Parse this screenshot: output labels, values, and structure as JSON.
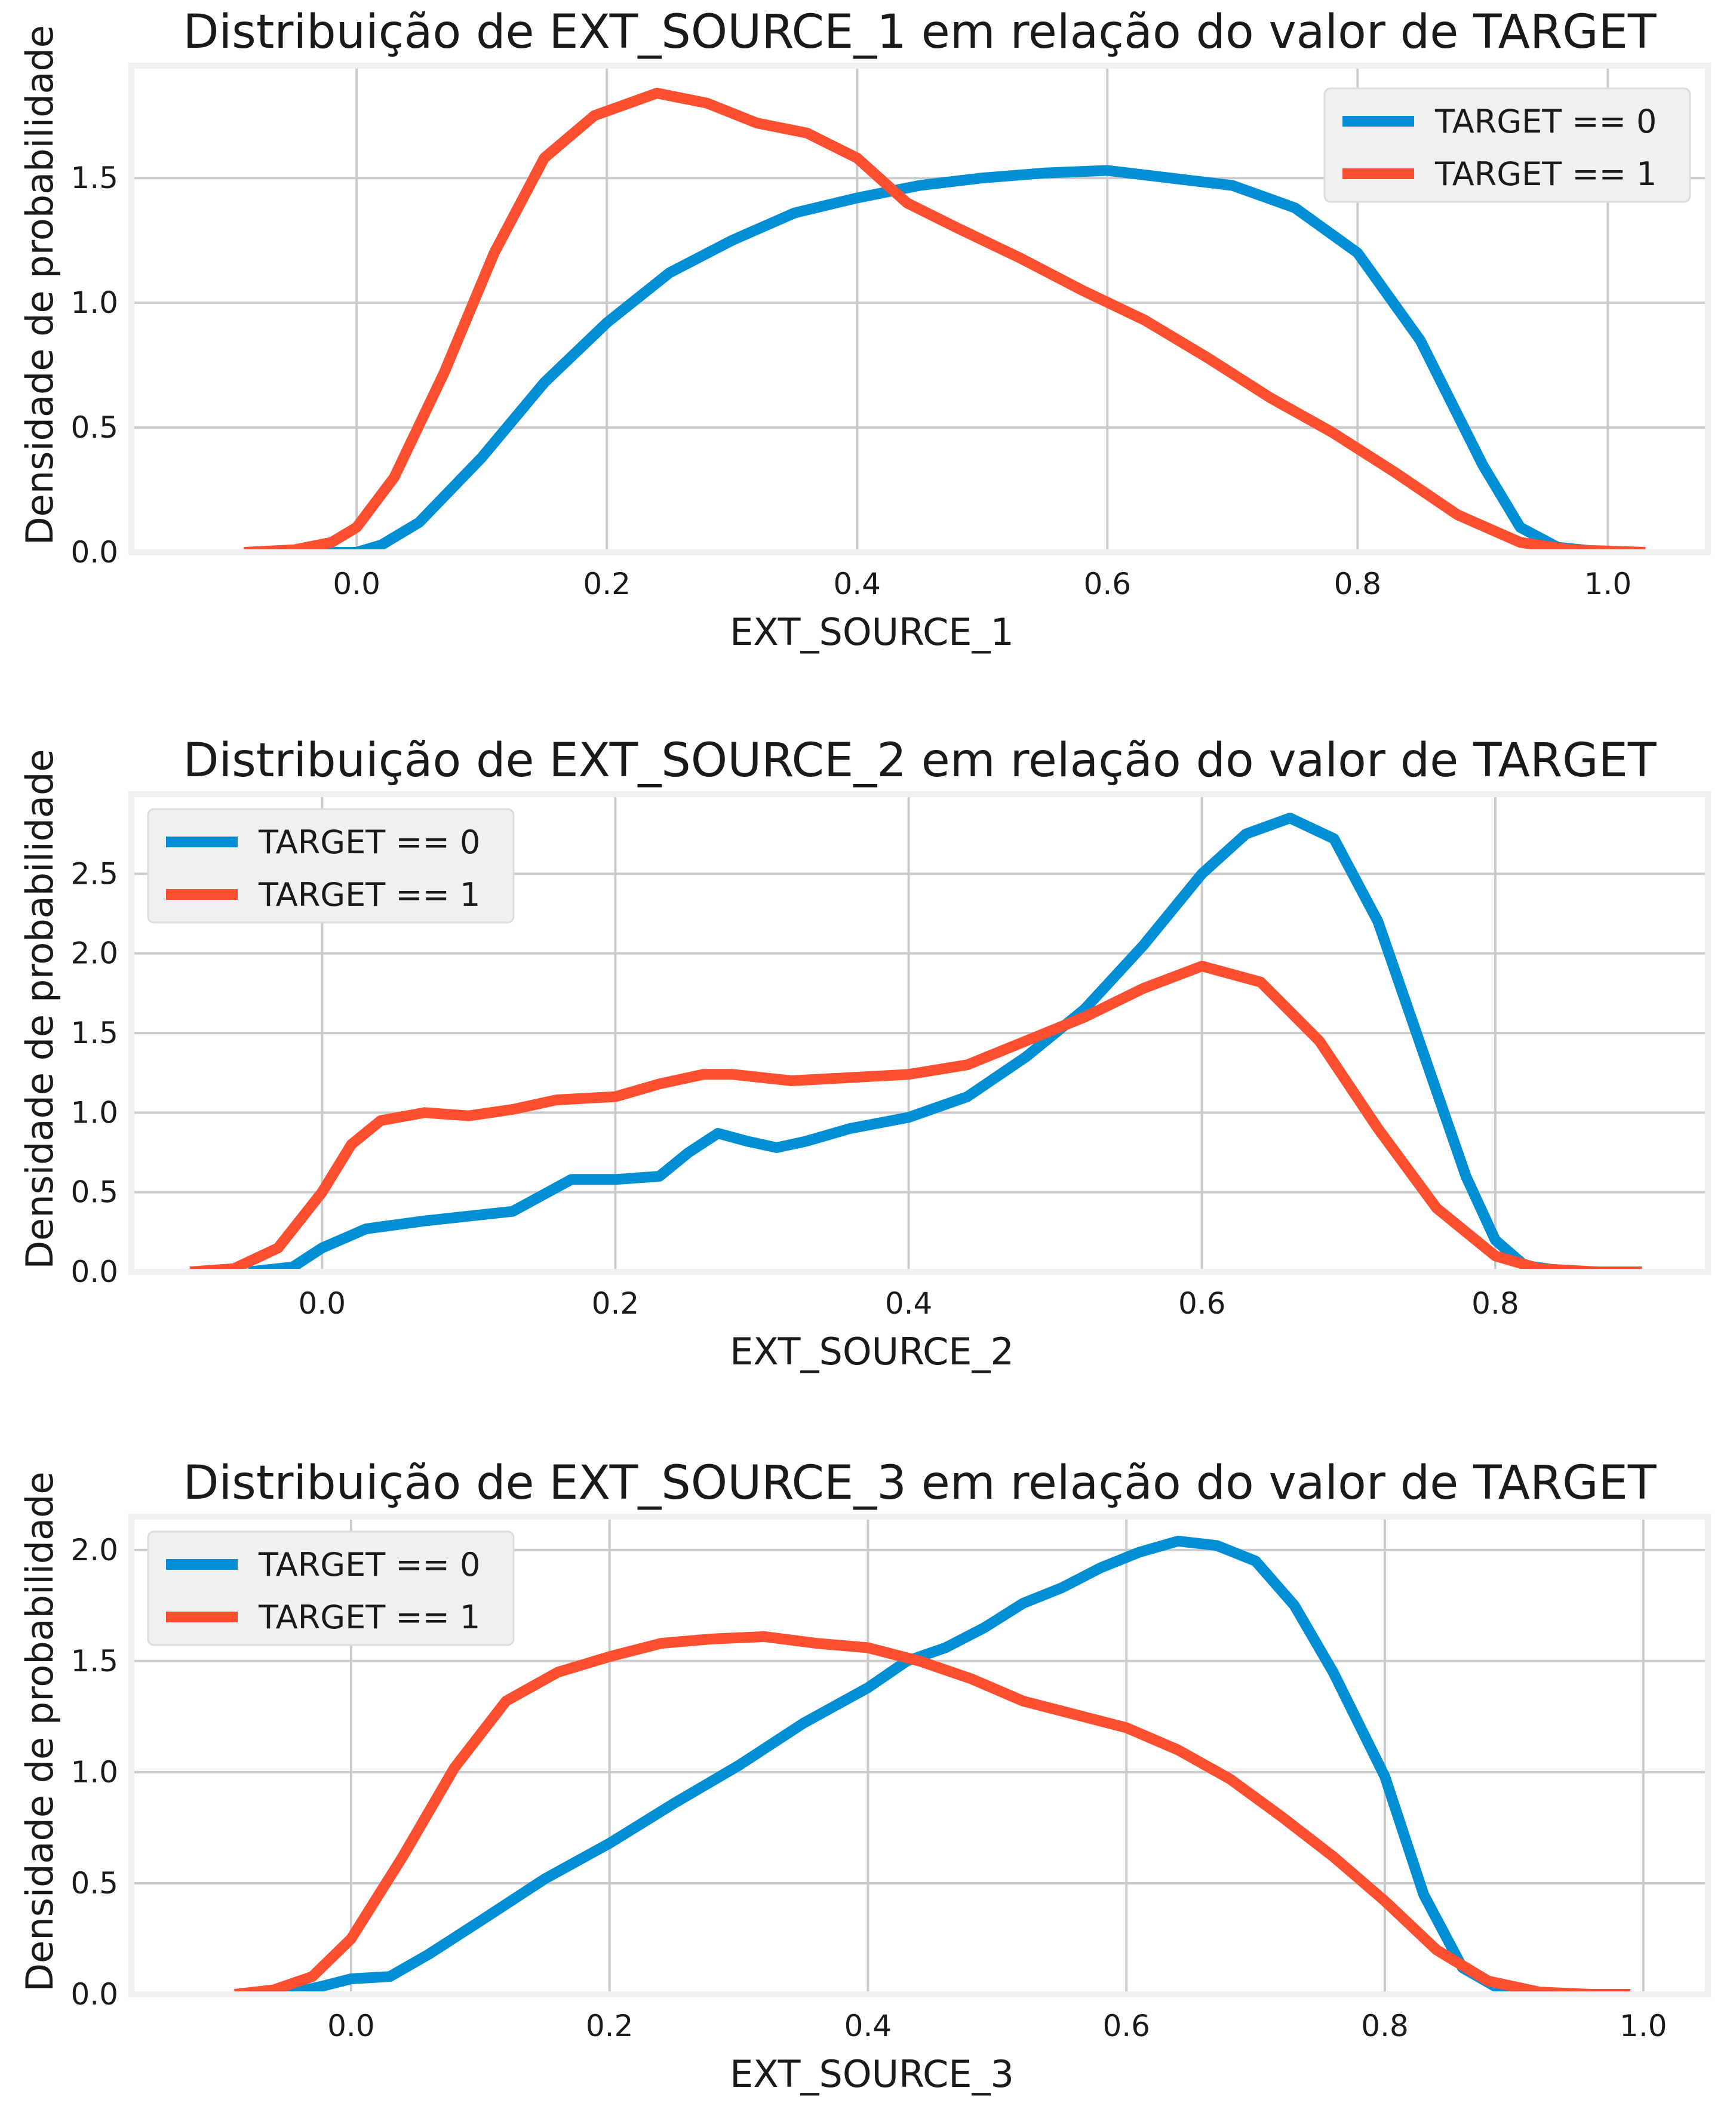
{
  "chart_data": [
    {
      "type": "line",
      "title": "Distribuição de EXT_SOURCE_1 em relação do valor de TARGET",
      "xlabel": "EXT_SOURCE_1",
      "ylabel": "Densidade de probabilidade",
      "xlim": [
        -0.18,
        1.08
      ],
      "ylim": [
        0,
        1.95
      ],
      "xticks": [
        "0.0",
        "0.2",
        "0.4",
        "0.6",
        "0.8",
        "1.0"
      ],
      "yticks": [
        "0.0",
        "0.5",
        "1.0",
        "1.5"
      ],
      "grid": true,
      "legend_position": "top-right",
      "series": [
        {
          "name": "TARGET == 0",
          "color": "#008fd5",
          "x": [
            -0.04,
            0.0,
            0.02,
            0.05,
            0.1,
            0.15,
            0.2,
            0.25,
            0.3,
            0.35,
            0.4,
            0.45,
            0.5,
            0.55,
            0.6,
            0.65,
            0.7,
            0.75,
            0.8,
            0.85,
            0.9,
            0.93,
            0.96,
            1.0,
            1.03
          ],
          "y": [
            0.0,
            0.0,
            0.03,
            0.12,
            0.38,
            0.68,
            0.92,
            1.12,
            1.25,
            1.36,
            1.42,
            1.47,
            1.5,
            1.52,
            1.53,
            1.5,
            1.47,
            1.38,
            1.2,
            0.85,
            0.35,
            0.1,
            0.02,
            0.0,
            0.0
          ]
        },
        {
          "name": "TARGET == 1",
          "color": "#fc4f30",
          "x": [
            -0.09,
            -0.05,
            -0.02,
            0.0,
            0.03,
            0.07,
            0.11,
            0.15,
            0.19,
            0.24,
            0.28,
            0.32,
            0.36,
            0.4,
            0.44,
            0.48,
            0.53,
            0.58,
            0.63,
            0.68,
            0.73,
            0.78,
            0.83,
            0.88,
            0.93,
            0.97,
            1.03
          ],
          "y": [
            0.0,
            0.01,
            0.04,
            0.1,
            0.3,
            0.72,
            1.2,
            1.58,
            1.75,
            1.84,
            1.8,
            1.72,
            1.68,
            1.58,
            1.4,
            1.3,
            1.18,
            1.05,
            0.93,
            0.78,
            0.62,
            0.48,
            0.32,
            0.15,
            0.04,
            0.01,
            0.0
          ]
        }
      ]
    },
    {
      "type": "line",
      "title": "Distribuição de EXT_SOURCE_2 em relação do valor de TARGET",
      "xlabel": "EXT_SOURCE_2",
      "ylabel": "Densidade de probabilidade",
      "xlim": [
        -0.13,
        0.945
      ],
      "ylim": [
        0,
        3.0
      ],
      "xticks": [
        "0.0",
        "0.2",
        "0.4",
        "0.6",
        "0.8"
      ],
      "yticks": [
        "0.0",
        "0.5",
        "1.0",
        "1.5",
        "2.0",
        "2.5"
      ],
      "grid": true,
      "legend_position": "top-left",
      "series": [
        {
          "name": "TARGET == 0",
          "color": "#008fd5",
          "x": [
            -0.05,
            -0.02,
            0.0,
            0.03,
            0.07,
            0.1,
            0.13,
            0.15,
            0.17,
            0.2,
            0.23,
            0.25,
            0.27,
            0.29,
            0.31,
            0.33,
            0.36,
            0.4,
            0.44,
            0.48,
            0.52,
            0.56,
            0.6,
            0.63,
            0.66,
            0.69,
            0.72,
            0.75,
            0.78,
            0.8,
            0.82,
            0.85,
            0.9
          ],
          "y": [
            0.0,
            0.03,
            0.15,
            0.27,
            0.32,
            0.35,
            0.38,
            0.48,
            0.58,
            0.58,
            0.6,
            0.75,
            0.87,
            0.82,
            0.78,
            0.82,
            0.9,
            0.97,
            1.1,
            1.35,
            1.65,
            2.05,
            2.5,
            2.75,
            2.85,
            2.72,
            2.2,
            1.4,
            0.6,
            0.2,
            0.04,
            0.0,
            0.0
          ]
        },
        {
          "name": "TARGET == 1",
          "color": "#fc4f30",
          "x": [
            -0.09,
            -0.06,
            -0.03,
            0.0,
            0.02,
            0.04,
            0.07,
            0.1,
            0.13,
            0.16,
            0.2,
            0.23,
            0.26,
            0.28,
            0.32,
            0.36,
            0.4,
            0.44,
            0.48,
            0.52,
            0.56,
            0.6,
            0.64,
            0.68,
            0.72,
            0.76,
            0.8,
            0.83,
            0.87,
            0.9
          ],
          "y": [
            0.0,
            0.02,
            0.15,
            0.5,
            0.8,
            0.95,
            1.0,
            0.98,
            1.02,
            1.08,
            1.1,
            1.18,
            1.24,
            1.24,
            1.2,
            1.22,
            1.24,
            1.3,
            1.45,
            1.6,
            1.78,
            1.92,
            1.82,
            1.45,
            0.9,
            0.4,
            0.1,
            0.02,
            0.0,
            0.0
          ]
        }
      ]
    },
    {
      "type": "line",
      "title": "Distribuição de EXT_SOURCE_3 em relação do valor de TARGET",
      "xlabel": "EXT_SOURCE_3",
      "ylabel": "Densidade de probabilidade",
      "xlim": [
        -0.17,
        1.05
      ],
      "ylim": [
        0,
        2.15
      ],
      "xticks": [
        "0.0",
        "0.2",
        "0.4",
        "0.6",
        "0.8",
        "1.0"
      ],
      "yticks": [
        "0.0",
        "0.5",
        "1.0",
        "1.5",
        "2.0"
      ],
      "grid": true,
      "legend_position": "top-left",
      "series": [
        {
          "name": "TARGET == 0",
          "color": "#008fd5",
          "x": [
            -0.05,
            -0.02,
            0.0,
            0.03,
            0.06,
            0.1,
            0.15,
            0.2,
            0.25,
            0.3,
            0.35,
            0.4,
            0.43,
            0.46,
            0.49,
            0.52,
            0.55,
            0.58,
            0.61,
            0.64,
            0.67,
            0.7,
            0.73,
            0.76,
            0.8,
            0.83,
            0.86,
            0.89,
            0.92,
            0.96
          ],
          "y": [
            0.0,
            0.04,
            0.07,
            0.08,
            0.18,
            0.33,
            0.52,
            0.68,
            0.86,
            1.03,
            1.22,
            1.38,
            1.5,
            1.56,
            1.65,
            1.76,
            1.83,
            1.92,
            1.99,
            2.04,
            2.02,
            1.95,
            1.75,
            1.45,
            0.98,
            0.45,
            0.12,
            0.02,
            0.0,
            0.0
          ]
        },
        {
          "name": "TARGET == 1",
          "color": "#fc4f30",
          "x": [
            -0.09,
            -0.06,
            -0.03,
            0.0,
            0.04,
            0.08,
            0.12,
            0.16,
            0.2,
            0.24,
            0.28,
            0.32,
            0.36,
            0.4,
            0.44,
            0.48,
            0.52,
            0.56,
            0.6,
            0.64,
            0.68,
            0.72,
            0.76,
            0.8,
            0.84,
            0.88,
            0.92,
            0.96,
            0.99
          ],
          "y": [
            0.0,
            0.02,
            0.08,
            0.25,
            0.62,
            1.02,
            1.32,
            1.45,
            1.52,
            1.58,
            1.6,
            1.61,
            1.58,
            1.56,
            1.5,
            1.42,
            1.32,
            1.26,
            1.2,
            1.1,
            0.97,
            0.8,
            0.62,
            0.42,
            0.2,
            0.06,
            0.01,
            0.0,
            0.0
          ]
        }
      ]
    }
  ]
}
